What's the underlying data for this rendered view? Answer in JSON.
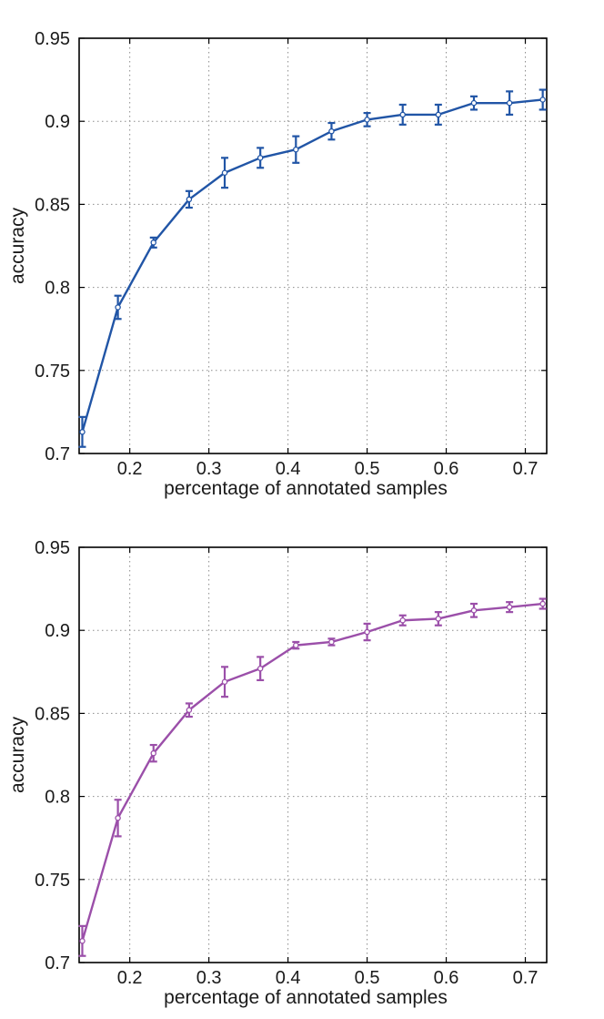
{
  "chart_data": [
    {
      "type": "line",
      "color": "#2155a6",
      "xlabel": "percentage of annotated samples",
      "ylabel": "accuracy",
      "xlim": [
        0.136,
        0.727
      ],
      "ylim": [
        0.7,
        0.95
      ],
      "xticks": [
        0.2,
        0.3,
        0.4,
        0.5,
        0.6,
        0.7
      ],
      "xtick_labels": [
        "0.2",
        "0.3",
        "0.4",
        "0.5",
        "0.6",
        "0.7"
      ],
      "yticks": [
        0.7,
        0.75,
        0.8,
        0.85,
        0.9,
        0.95
      ],
      "ytick_labels": [
        "0.7",
        "0.75",
        "0.8",
        "0.85",
        "0.9",
        "0.95"
      ],
      "grid": true,
      "series": [
        {
          "name": "accuracy",
          "x": [
            0.14,
            0.185,
            0.23,
            0.275,
            0.32,
            0.365,
            0.41,
            0.455,
            0.5,
            0.545,
            0.59,
            0.635,
            0.68,
            0.722
          ],
          "y": [
            0.713,
            0.788,
            0.827,
            0.853,
            0.869,
            0.878,
            0.883,
            0.894,
            0.901,
            0.904,
            0.904,
            0.911,
            0.911,
            0.913
          ],
          "err": [
            0.009,
            0.007,
            0.003,
            0.005,
            0.009,
            0.006,
            0.008,
            0.005,
            0.004,
            0.006,
            0.006,
            0.004,
            0.007,
            0.006
          ]
        }
      ]
    },
    {
      "type": "line",
      "color": "#9b4fa9",
      "xlabel": "percentage of annotated samples",
      "ylabel": "accuracy",
      "xlim": [
        0.136,
        0.727
      ],
      "ylim": [
        0.7,
        0.95
      ],
      "xticks": [
        0.2,
        0.3,
        0.4,
        0.5,
        0.6,
        0.7
      ],
      "xtick_labels": [
        "0.2",
        "0.3",
        "0.4",
        "0.5",
        "0.6",
        "0.7"
      ],
      "yticks": [
        0.7,
        0.75,
        0.8,
        0.85,
        0.9,
        0.95
      ],
      "ytick_labels": [
        "0.7",
        "0.75",
        "0.8",
        "0.85",
        "0.9",
        "0.95"
      ],
      "grid": true,
      "series": [
        {
          "name": "accuracy",
          "x": [
            0.14,
            0.185,
            0.23,
            0.275,
            0.32,
            0.365,
            0.41,
            0.455,
            0.5,
            0.545,
            0.59,
            0.635,
            0.68,
            0.722
          ],
          "y": [
            0.713,
            0.787,
            0.826,
            0.852,
            0.869,
            0.877,
            0.891,
            0.893,
            0.899,
            0.906,
            0.907,
            0.912,
            0.914,
            0.916
          ],
          "err": [
            0.009,
            0.011,
            0.005,
            0.004,
            0.009,
            0.007,
            0.002,
            0.002,
            0.005,
            0.003,
            0.004,
            0.004,
            0.003,
            0.003
          ]
        }
      ]
    }
  ]
}
